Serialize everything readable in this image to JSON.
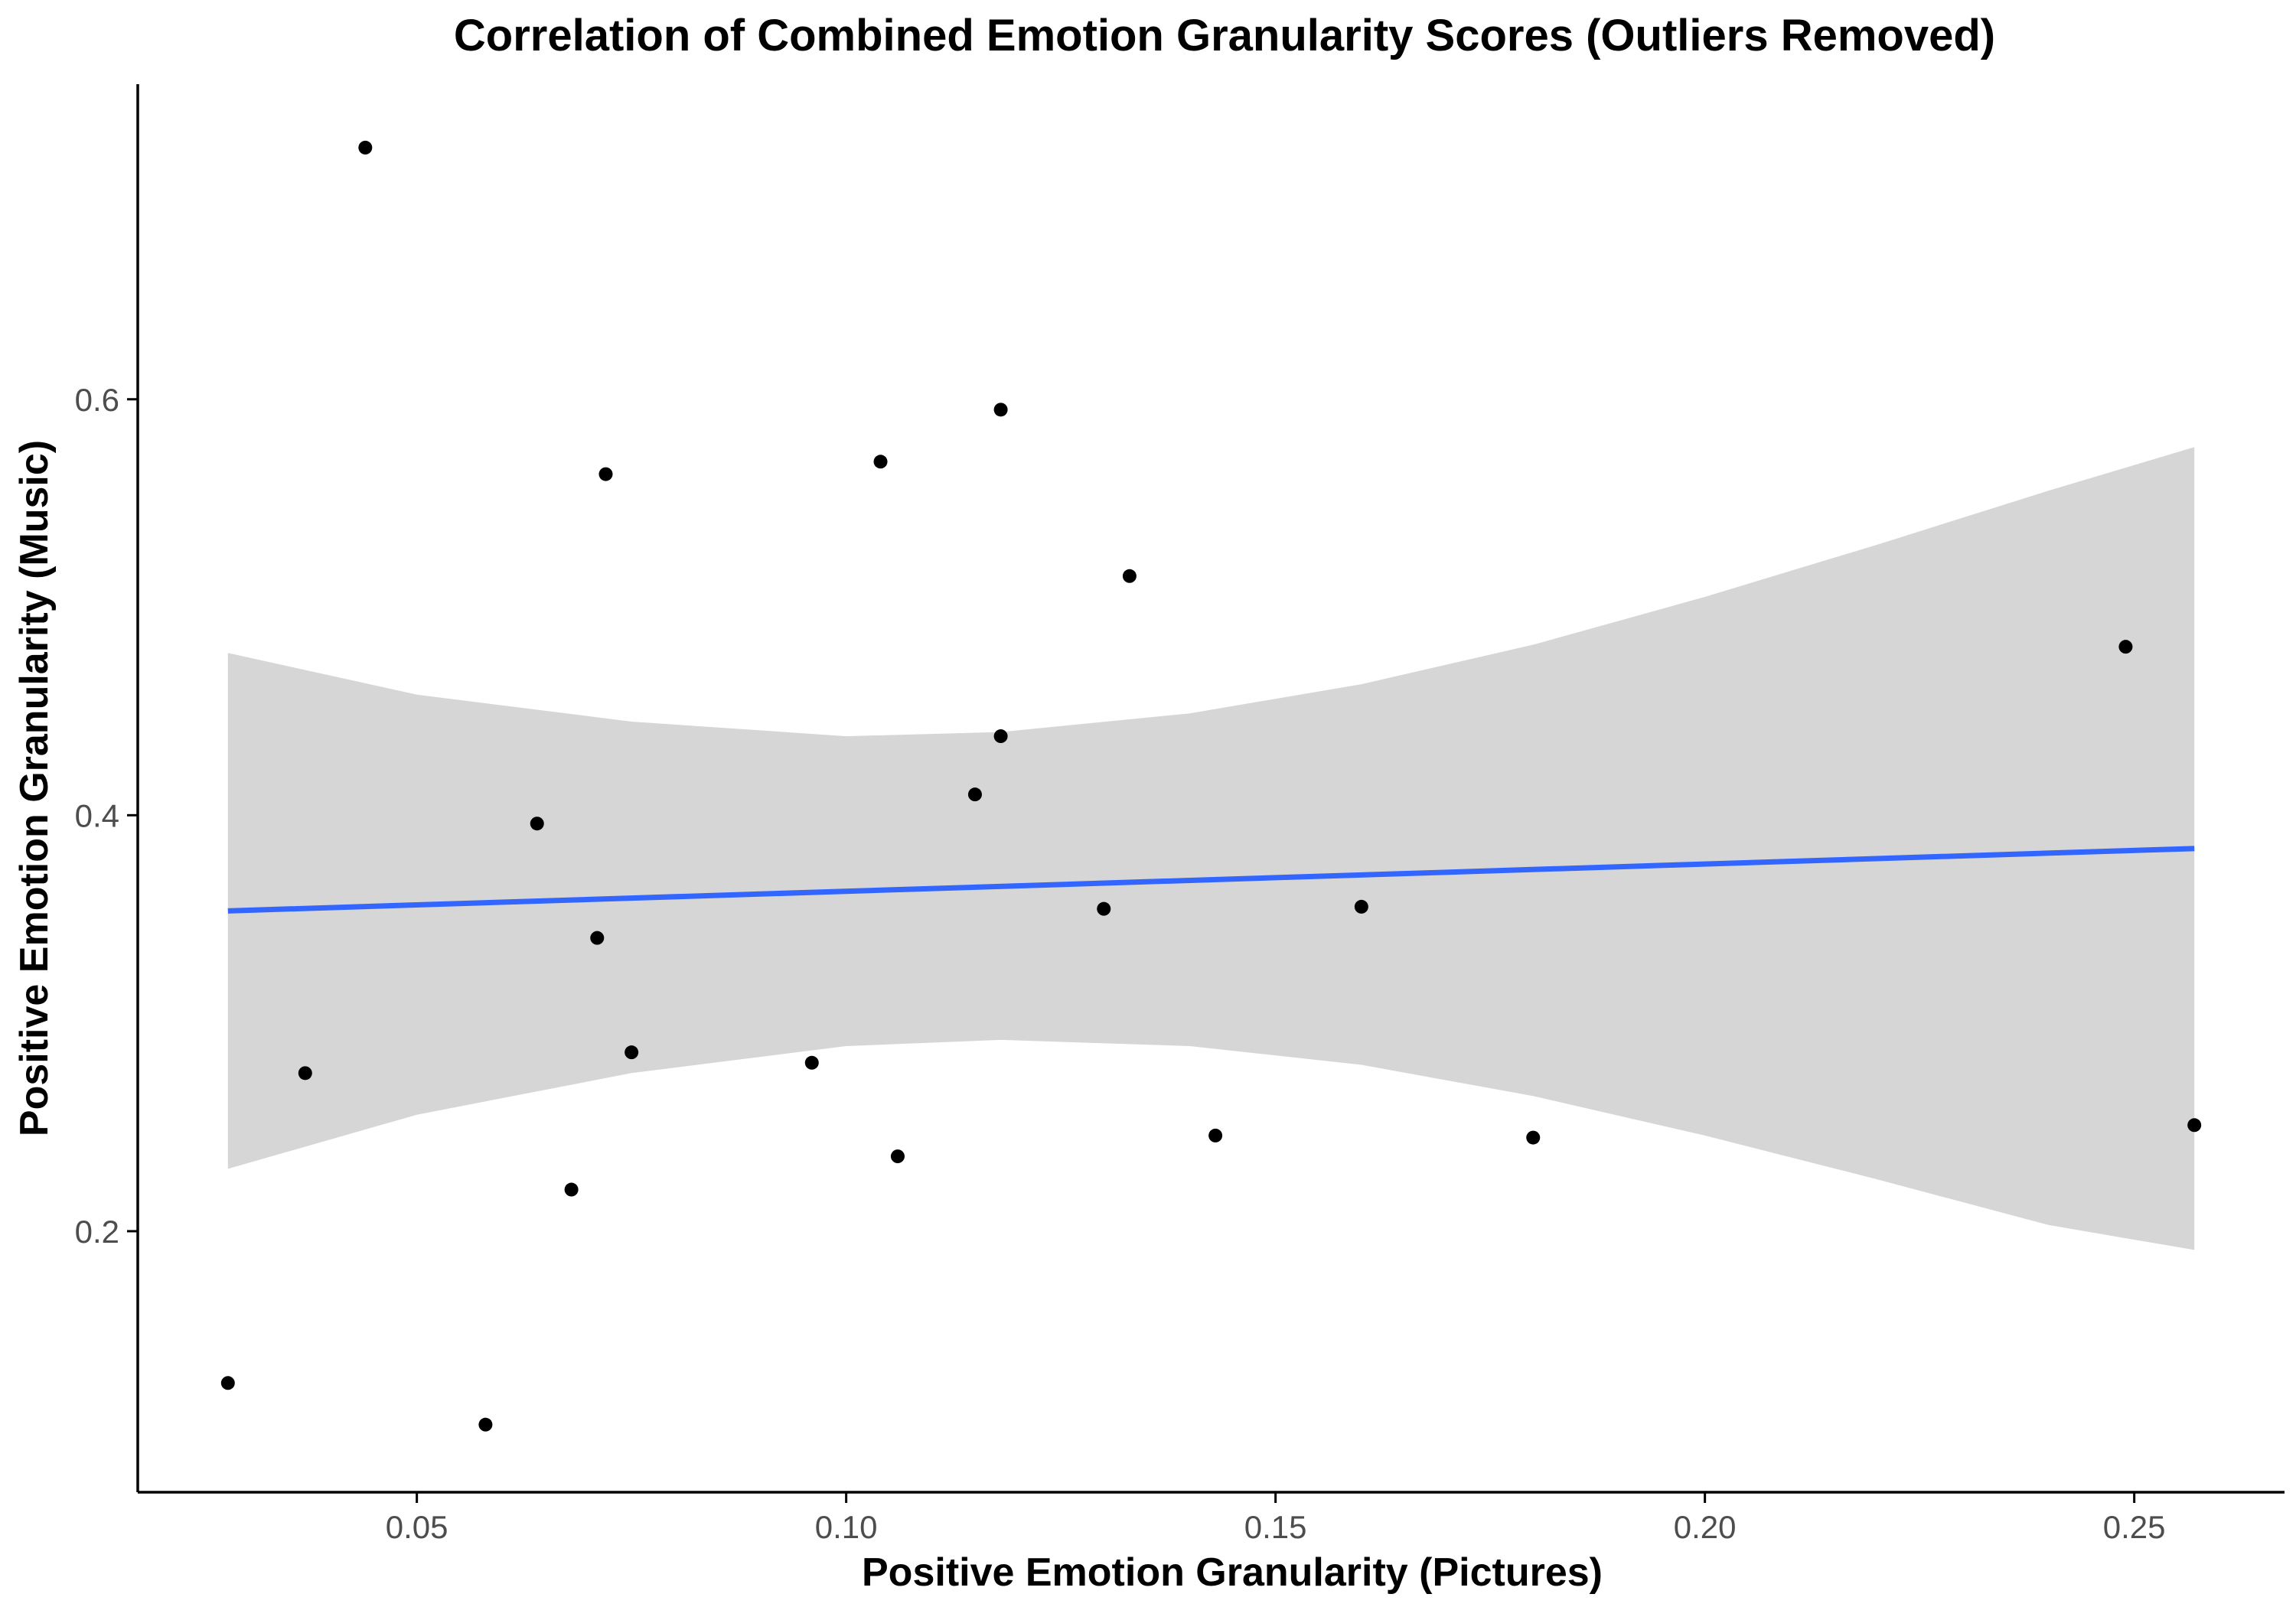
{
  "chart_data": {
    "type": "scatter",
    "title": "Correlation of Combined Emotion Granularity Scores (Outliers Removed)",
    "xlabel": "Positive Emotion Granularity (Pictures)",
    "ylabel": "Positive Emotion Granularity (Music)",
    "xlim": [
      0.0175,
      0.2675
    ],
    "ylim": [
      0.0745,
      0.7515
    ],
    "x_ticks": [
      0.05,
      0.1,
      0.15,
      0.2,
      0.25
    ],
    "x_tick_labels": [
      "0.05",
      "0.10",
      "0.15",
      "0.20",
      "0.25"
    ],
    "y_ticks": [
      0.2,
      0.4,
      0.6
    ],
    "y_tick_labels": [
      "0.2",
      "0.4",
      "0.6"
    ],
    "grid": false,
    "legend": "none",
    "points": [
      {
        "x": 0.028,
        "y": 0.127
      },
      {
        "x": 0.037,
        "y": 0.276
      },
      {
        "x": 0.044,
        "y": 0.721
      },
      {
        "x": 0.058,
        "y": 0.107
      },
      {
        "x": 0.064,
        "y": 0.396
      },
      {
        "x": 0.068,
        "y": 0.22
      },
      {
        "x": 0.071,
        "y": 0.341
      },
      {
        "x": 0.072,
        "y": 0.564
      },
      {
        "x": 0.075,
        "y": 0.286
      },
      {
        "x": 0.096,
        "y": 0.281
      },
      {
        "x": 0.104,
        "y": 0.57
      },
      {
        "x": 0.106,
        "y": 0.236
      },
      {
        "x": 0.115,
        "y": 0.41
      },
      {
        "x": 0.118,
        "y": 0.438
      },
      {
        "x": 0.118,
        "y": 0.595
      },
      {
        "x": 0.13,
        "y": 0.355
      },
      {
        "x": 0.133,
        "y": 0.515
      },
      {
        "x": 0.143,
        "y": 0.246
      },
      {
        "x": 0.16,
        "y": 0.356
      },
      {
        "x": 0.18,
        "y": 0.245
      },
      {
        "x": 0.249,
        "y": 0.481
      },
      {
        "x": 0.257,
        "y": 0.251
      }
    ],
    "fit_line": {
      "method": "lm",
      "x": [
        0.028,
        0.257
      ],
      "y": [
        0.354,
        0.384
      ]
    },
    "confidence_band": {
      "x": [
        0.028,
        0.05,
        0.075,
        0.1,
        0.118,
        0.14,
        0.16,
        0.18,
        0.2,
        0.22,
        0.24,
        0.257
      ],
      "upper": [
        0.478,
        0.458,
        0.445,
        0.438,
        0.44,
        0.449,
        0.463,
        0.482,
        0.505,
        0.53,
        0.556,
        0.577
      ],
      "lower": [
        0.23,
        0.256,
        0.276,
        0.289,
        0.292,
        0.289,
        0.28,
        0.265,
        0.246,
        0.225,
        0.203,
        0.191
      ]
    },
    "colors": {
      "points": "#000000",
      "fit_line": "#3366ff",
      "confidence_band": "#d6d6d6"
    }
  }
}
